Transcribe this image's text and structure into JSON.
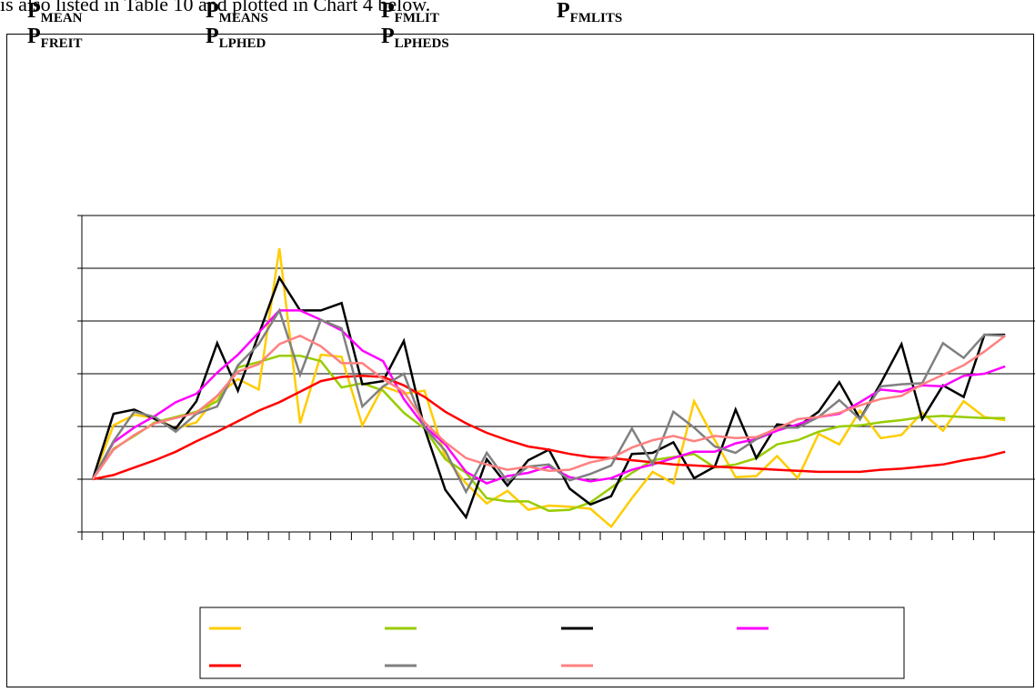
{
  "intro_text": "is also listed in Table 10 and plotted in Chart 4 below.",
  "symbols": [
    {
      "main": "P",
      "sub": "MEAN"
    },
    {
      "main": "P",
      "sub": "MEANS"
    },
    {
      "main": "P",
      "sub": "FMLIT"
    },
    {
      "main": "P",
      "sub": "FMLITS"
    },
    {
      "main": "P",
      "sub": "FREIT"
    },
    {
      "main": "P",
      "sub": "LPHED"
    },
    {
      "main": "P",
      "sub": "LPHEDS"
    }
  ],
  "chart_data": {
    "type": "line",
    "title": "",
    "xlabel": "",
    "ylabel": "",
    "x": [
      1,
      2,
      3,
      4,
      5,
      6,
      7,
      8,
      9,
      10,
      11,
      12,
      13,
      14,
      15,
      16,
      17,
      18,
      19,
      20,
      21,
      22,
      23,
      24,
      25,
      26,
      27,
      28,
      29,
      30,
      31,
      32,
      33,
      34,
      35,
      36,
      37,
      38,
      39,
      40,
      41,
      42,
      43,
      44,
      45
    ],
    "ylim": [
      -1,
      5
    ],
    "grid": "horizontal",
    "legend_position": "bottom",
    "series": [
      {
        "color": "#ffcc00",
        "values": [
          0,
          1.02,
          1.22,
          1.16,
          0.96,
          1.08,
          1.58,
          1.9,
          1.7,
          4.38,
          1.06,
          2.36,
          2.32,
          1.02,
          1.76,
          1.62,
          1.68,
          0.42,
          -0.08,
          -0.46,
          -0.22,
          -0.58,
          -0.5,
          -0.52,
          -0.56,
          -0.9,
          -0.36,
          0.14,
          -0.08,
          1.48,
          0.74,
          0.04,
          0.06,
          0.44,
          0.02,
          0.86,
          0.66,
          1.3,
          0.78,
          0.84,
          1.26,
          0.92,
          1.48,
          1.18,
          1.12
        ]
      },
      {
        "color": "#99cc00",
        "values": [
          0,
          0.58,
          0.82,
          1.08,
          1.18,
          1.28,
          1.48,
          2.12,
          2.22,
          2.34,
          2.34,
          2.24,
          1.74,
          1.82,
          1.68,
          1.26,
          0.96,
          0.38,
          0.12,
          -0.36,
          -0.42,
          -0.42,
          -0.6,
          -0.58,
          -0.44,
          -0.16,
          0.12,
          0.36,
          0.42,
          0.48,
          0.22,
          0.28,
          0.4,
          0.66,
          0.74,
          0.9,
          1,
          1.02,
          1.08,
          1.12,
          1.18,
          1.2,
          1.18,
          1.16,
          1.16
        ]
      },
      {
        "color": "#000000",
        "values": [
          0,
          1.24,
          1.32,
          1.14,
          0.96,
          1.48,
          2.58,
          1.68,
          2.74,
          3.82,
          3.2,
          3.2,
          3.34,
          1.8,
          1.86,
          2.62,
          0.96,
          -0.2,
          -0.72,
          0.38,
          -0.12,
          0.36,
          0.56,
          -0.18,
          -0.48,
          -0.32,
          0.48,
          0.5,
          0.7,
          0.02,
          0.24,
          1.32,
          0.4,
          1.04,
          1,
          1.28,
          1.84,
          1.14,
          1.82,
          2.56,
          1.14,
          1.78,
          1.56,
          2.74,
          2.74
        ]
      },
      {
        "color": "#ff00ff",
        "values": [
          0,
          0.7,
          0.98,
          1.2,
          1.46,
          1.62,
          2.02,
          2.36,
          2.78,
          3.2,
          3.2,
          3.02,
          2.82,
          2.44,
          2.24,
          1.52,
          1,
          0.66,
          0.14,
          -0.08,
          0.06,
          0.12,
          0.24,
          0.04,
          -0.04,
          0.02,
          0.18,
          0.28,
          0.4,
          0.52,
          0.52,
          0.68,
          0.76,
          0.92,
          1.04,
          1.18,
          1.24,
          1.46,
          1.7,
          1.66,
          1.78,
          1.76,
          1.96,
          2,
          2.14
        ]
      },
      {
        "color": "#ff0000",
        "values": [
          0,
          0.08,
          0.22,
          0.36,
          0.52,
          0.72,
          0.9,
          1.1,
          1.3,
          1.46,
          1.66,
          1.86,
          1.94,
          1.96,
          1.94,
          1.78,
          1.56,
          1.28,
          1.06,
          0.88,
          0.74,
          0.62,
          0.56,
          0.48,
          0.42,
          0.4,
          0.36,
          0.32,
          0.28,
          0.26,
          0.24,
          0.22,
          0.2,
          0.18,
          0.16,
          0.14,
          0.14,
          0.14,
          0.18,
          0.2,
          0.24,
          0.28,
          0.36,
          0.42,
          0.52
        ]
      },
      {
        "color": "#808080",
        "values": [
          0,
          0.72,
          1.28,
          1.18,
          0.9,
          1.24,
          1.38,
          2.16,
          2.56,
          3.2,
          1.98,
          3.02,
          2.86,
          1.38,
          1.76,
          2.0,
          0.98,
          0.54,
          -0.24,
          0.5,
          -0.04,
          0.24,
          0.28,
          -0.02,
          0.1,
          0.26,
          0.96,
          0.28,
          1.28,
          0.98,
          0.62,
          0.5,
          0.76,
          0.98,
          0.98,
          1.18,
          1.5,
          1.14,
          1.76,
          1.8,
          1.82,
          2.58,
          2.3,
          2.74,
          2.72
        ]
      },
      {
        "color": "#ff8080",
        "values": [
          0,
          0.56,
          0.84,
          1.06,
          1.16,
          1.26,
          1.58,
          2.04,
          2.18,
          2.56,
          2.72,
          2.52,
          2.2,
          2.2,
          1.9,
          1.66,
          1.08,
          0.7,
          0.4,
          0.28,
          0.18,
          0.24,
          0.16,
          0.18,
          0.32,
          0.4,
          0.6,
          0.74,
          0.82,
          0.72,
          0.82,
          0.78,
          0.8,
          0.96,
          1.14,
          1.18,
          1.26,
          1.4,
          1.52,
          1.58,
          1.8,
          1.98,
          2.16,
          2.42,
          2.72
        ]
      }
    ]
  }
}
